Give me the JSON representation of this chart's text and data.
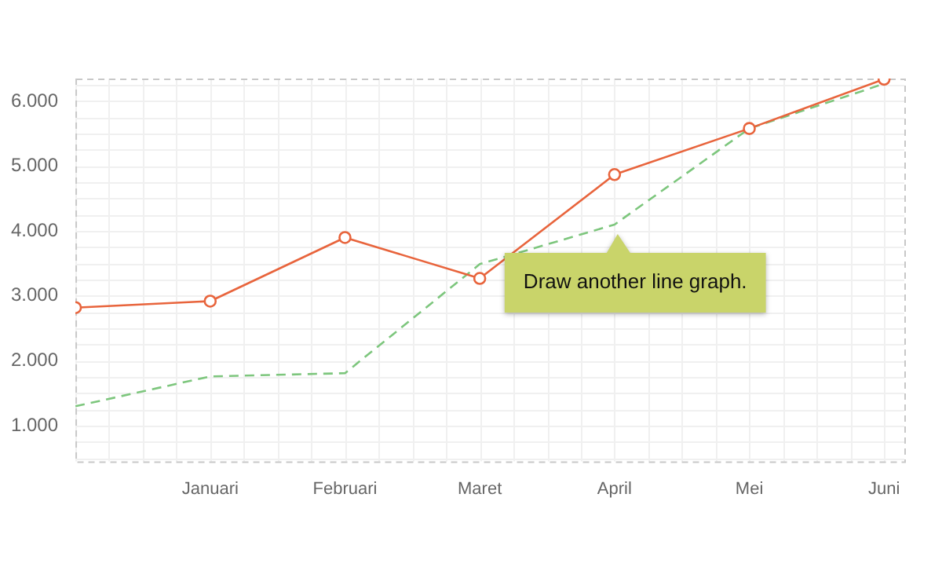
{
  "chart_data": {
    "type": "line",
    "categories": [
      null,
      "Januari",
      "Februari",
      "Maret",
      "April",
      "Mei",
      "Juni"
    ],
    "ylim": [
      450,
      6350
    ],
    "yticks": [
      {
        "value": 1000,
        "label": "1.000"
      },
      {
        "value": 2000,
        "label": "2.000"
      },
      {
        "value": 3000,
        "label": "3.000"
      },
      {
        "value": 4000,
        "label": "4.000"
      },
      {
        "value": 5000,
        "label": "5.000"
      },
      {
        "value": 6000,
        "label": "6.000"
      }
    ],
    "grid": true,
    "legend": false,
    "series": [
      {
        "color": "#e8643c",
        "marker": "circle",
        "line_style": "solid",
        "values": [
          2820,
          2920,
          3900,
          3270,
          4870,
          5580,
          6340
        ]
      },
      {
        "color": "#7dc67d",
        "marker": "none",
        "line_style": "dashed",
        "values": [
          1300,
          1760,
          1810,
          3490,
          4100,
          5580,
          6270
        ]
      }
    ],
    "annotations": [
      {
        "text": "Draw another line graph.",
        "x": "April",
        "y": 4100
      }
    ]
  }
}
